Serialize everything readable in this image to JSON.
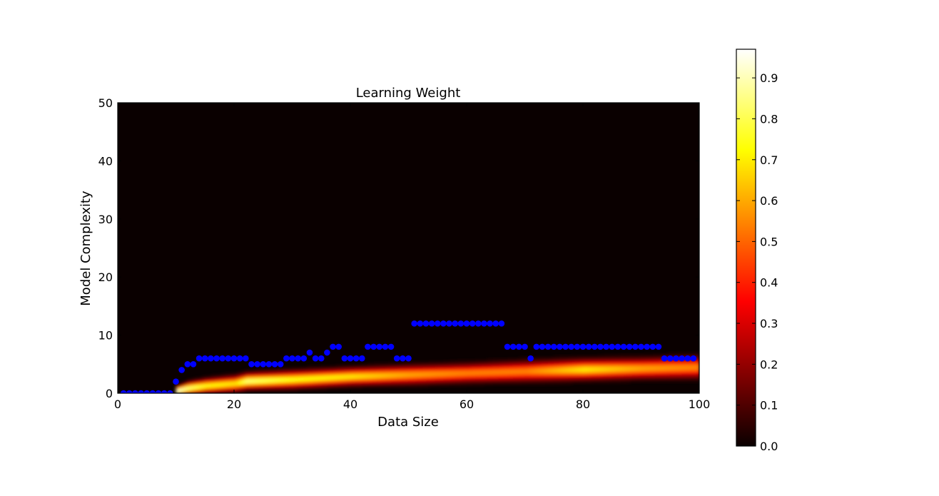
{
  "chart_data": {
    "type": "heatmap",
    "title": "Learning Weight",
    "xlabel": "Data Size",
    "ylabel": "Model Complexity",
    "xlim": [
      0,
      100
    ],
    "ylim": [
      0,
      50
    ],
    "x_ticks": [
      0,
      20,
      40,
      60,
      80,
      100
    ],
    "y_ticks": [
      0,
      10,
      20,
      30,
      40,
      50
    ],
    "colormap": "hot",
    "colorbar": {
      "range": [
        0.0,
        0.97
      ],
      "ticks": [
        0.0,
        0.1,
        0.2,
        0.3,
        0.4,
        0.5,
        0.6,
        0.7,
        0.8,
        0.9
      ],
      "tick_labels": [
        "0.0",
        "0.1",
        "0.2",
        "0.3",
        "0.4",
        "0.5",
        "0.6",
        "0.7",
        "0.8",
        "0.9"
      ]
    },
    "heatmap_ridge": {
      "description_free": true,
      "x": [
        10,
        12,
        15,
        20,
        22,
        30,
        40,
        50,
        60,
        70,
        80,
        90,
        100
      ],
      "center_y": [
        0.3,
        0.8,
        1.2,
        1.6,
        2.0,
        2.3,
        2.8,
        3.1,
        3.4,
        3.7,
        4.0,
        4.2,
        4.4
      ],
      "peak_weight": [
        0.97,
        0.85,
        0.75,
        0.7,
        0.85,
        0.75,
        0.7,
        0.6,
        0.55,
        0.55,
        0.7,
        0.6,
        0.55
      ],
      "spread_y": [
        0.6,
        0.8,
        0.9,
        1.0,
        1.0,
        1.1,
        1.1,
        1.2,
        1.2,
        1.3,
        1.3,
        1.3,
        1.4
      ]
    },
    "scatter": {
      "color": "#0000ff",
      "x": [
        1,
        2,
        3,
        4,
        5,
        6,
        7,
        8,
        9,
        10,
        11,
        12,
        13,
        14,
        15,
        16,
        17,
        18,
        19,
        20,
        21,
        22,
        23,
        24,
        25,
        26,
        27,
        28,
        29,
        30,
        31,
        32,
        33,
        34,
        35,
        36,
        37,
        38,
        39,
        40,
        41,
        42,
        43,
        44,
        45,
        46,
        47,
        48,
        49,
        50,
        51,
        52,
        53,
        54,
        55,
        56,
        57,
        58,
        59,
        60,
        61,
        62,
        63,
        64,
        65,
        66,
        67,
        68,
        69,
        70,
        71,
        72,
        73,
        74,
        75,
        76,
        77,
        78,
        79,
        80,
        81,
        82,
        83,
        84,
        85,
        86,
        87,
        88,
        89,
        90,
        91,
        92,
        93,
        94,
        95,
        96,
        97,
        98,
        99
      ],
      "y": [
        0,
        0,
        0,
        0,
        0,
        0,
        0,
        0,
        0,
        2,
        4,
        5,
        5,
        6,
        6,
        6,
        6,
        6,
        6,
        6,
        6,
        6,
        5,
        5,
        5,
        5,
        5,
        5,
        6,
        6,
        6,
        6,
        7,
        6,
        6,
        7,
        8,
        8,
        6,
        6,
        6,
        6,
        8,
        8,
        8,
        8,
        8,
        6,
        6,
        6,
        12,
        12,
        12,
        12,
        12,
        12,
        12,
        12,
        12,
        12,
        12,
        12,
        12,
        12,
        12,
        12,
        8,
        8,
        8,
        8,
        6,
        8,
        8,
        8,
        8,
        8,
        8,
        8,
        8,
        8,
        8,
        8,
        8,
        8,
        8,
        8,
        8,
        8,
        8,
        8,
        8,
        8,
        8,
        6,
        6,
        6,
        6,
        6,
        6
      ]
    }
  }
}
